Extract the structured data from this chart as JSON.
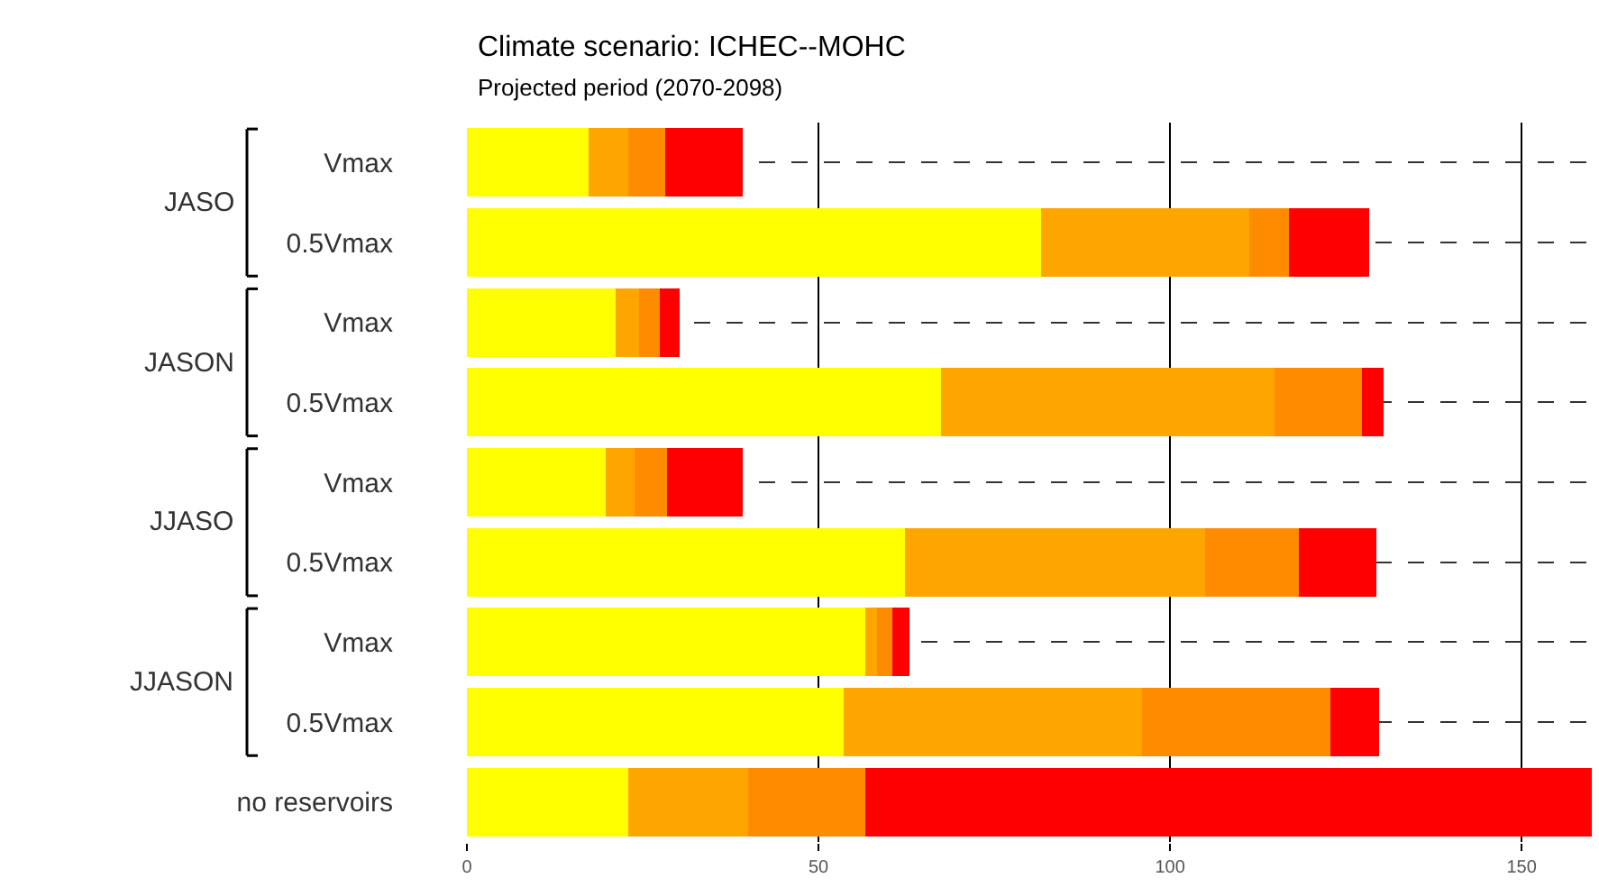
{
  "chart_data": {
    "type": "bar",
    "orientation": "horizontal",
    "stacked": true,
    "title": "Climate scenario: ICHEC--MOHC",
    "subtitle": "Projected period (2070-2098)",
    "categories": [
      "Vmax",
      "0.5Vmax",
      "Vmax",
      "0.5Vmax",
      "Vmax",
      "0.5Vmax",
      "Vmax",
      "0.5Vmax",
      "no reservoirs"
    ],
    "annotations": [
      "JASO",
      "JASON",
      "JJASO",
      "JJASON"
    ],
    "series": [
      {
        "color": "#ffff00",
        "values": [
          17.3,
          81.7,
          21.2,
          67.4,
          19.7,
          62.3,
          56.7,
          53.6,
          22.9
        ]
      },
      {
        "color": "#ffa500",
        "values": [
          5.6,
          29.6,
          3.3,
          47.4,
          4.2,
          42.7,
          1.6,
          42.4,
          17.1
        ]
      },
      {
        "color": "#ff8c00",
        "values": [
          5.3,
          5.6,
          2.9,
          12.5,
          4.5,
          13.3,
          2.2,
          26.8,
          16.7
        ]
      },
      {
        "color": "#ff0000",
        "values": [
          11.0,
          11.4,
          2.8,
          3.1,
          10.8,
          11.1,
          2.4,
          6.9,
          103.3
        ]
      }
    ],
    "xlim": [
      0,
      161
    ],
    "xticks": [
      0,
      50,
      100,
      150
    ],
    "grid": true,
    "legend": false
  }
}
